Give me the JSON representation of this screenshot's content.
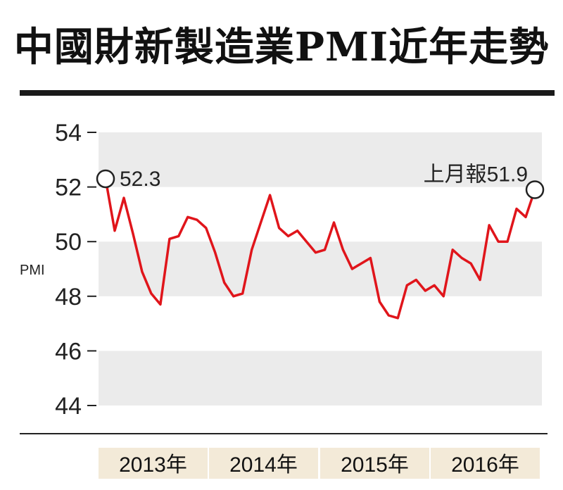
{
  "title": "中國財新製造業PMI近年走勢",
  "chart_data": {
    "type": "line",
    "ylabel": "PMI",
    "ylim": [
      44,
      54
    ],
    "yticks": [
      44,
      46,
      48,
      50,
      52,
      54
    ],
    "year_labels": [
      "2013年",
      "2014年",
      "2015年",
      "2016年"
    ],
    "series": [
      {
        "values": [
          52.3,
          50.4,
          51.6,
          50.3,
          48.9,
          48.1,
          47.7,
          50.1,
          50.2,
          50.9,
          50.8,
          50.5,
          49.6,
          48.5,
          48.0,
          48.1,
          49.7,
          50.7,
          51.7,
          50.5,
          50.2,
          50.4,
          50.0,
          49.6,
          49.7,
          50.7,
          49.7,
          49.0,
          49.2,
          49.4,
          47.8,
          47.3,
          47.2,
          48.4,
          48.6,
          48.2,
          48.4,
          48.0,
          49.7,
          49.4,
          49.2,
          48.6,
          50.6,
          50.0,
          50.0,
          51.2,
          50.9,
          51.9
        ]
      }
    ],
    "annotations": [
      {
        "text": "52.3",
        "index": 0,
        "value": 52.3
      },
      {
        "text": "上月報51.9",
        "index": 47,
        "value": 51.9
      }
    ],
    "line_color": "#e0151b",
    "band_color": "#ebebeb",
    "year_label_bg": "#f3ead8"
  }
}
